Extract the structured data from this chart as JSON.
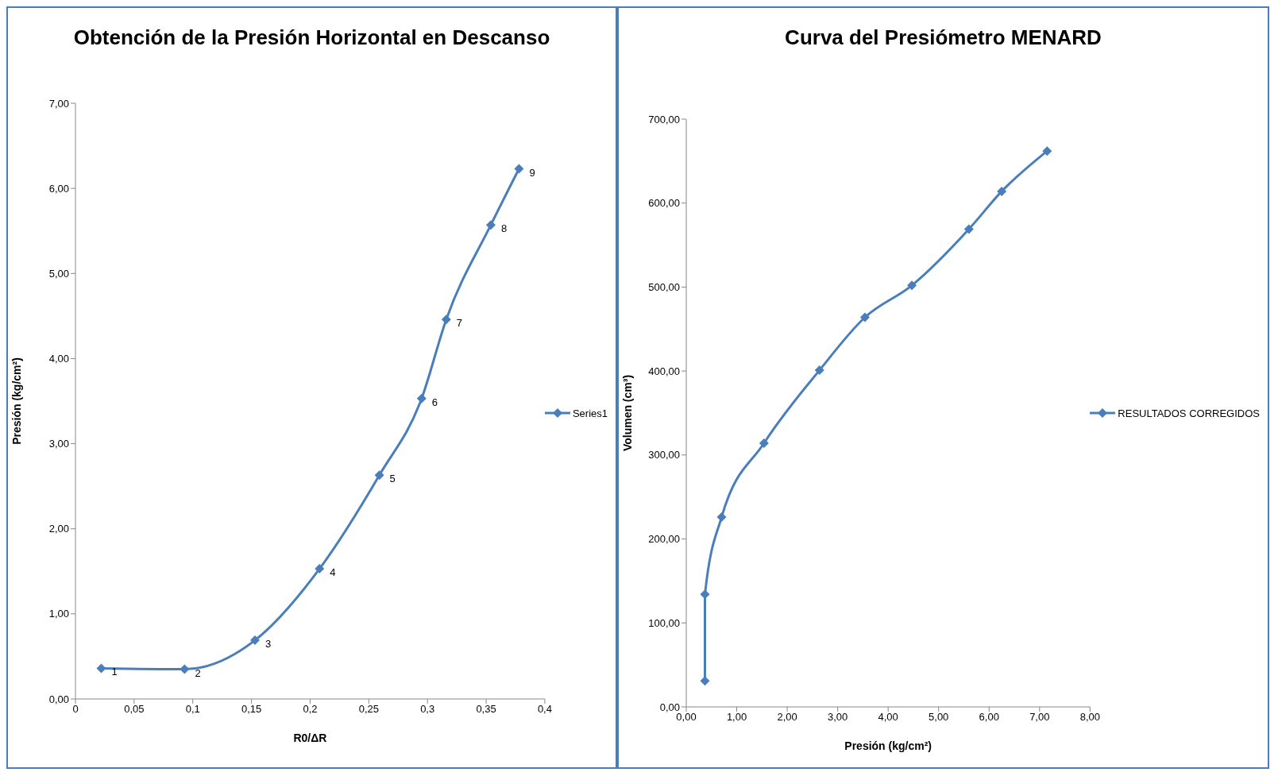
{
  "chart_data": [
    {
      "type": "line",
      "title": "Obtención de la Presión Horizontal en Descanso",
      "xlabel": "R0/ΔR",
      "ylabel": "Presión (kg/cm²)",
      "x": [
        0.022,
        0.093,
        0.153,
        0.208,
        0.259,
        0.295,
        0.316,
        0.354,
        0.378
      ],
      "series": [
        {
          "name": "Series1",
          "color": "#4a7ebb",
          "values": [
            0.36,
            0.35,
            0.69,
            1.53,
            2.63,
            3.53,
            4.46,
            5.57,
            6.23
          ]
        }
      ],
      "annotations": [
        {
          "text": "1",
          "x": 0.022,
          "y": 0.36
        },
        {
          "text": "2",
          "x": 0.093,
          "y": 0.35
        },
        {
          "text": "3",
          "x": 0.153,
          "y": 0.69
        },
        {
          "text": "4",
          "x": 0.208,
          "y": 1.53
        },
        {
          "text": "5",
          "x": 0.259,
          "y": 2.63
        },
        {
          "text": "6",
          "x": 0.295,
          "y": 3.53
        },
        {
          "text": "7",
          "x": 0.316,
          "y": 4.46
        },
        {
          "text": "8",
          "x": 0.354,
          "y": 5.57
        },
        {
          "text": "9",
          "x": 0.378,
          "y": 6.23
        }
      ],
      "xlim": [
        0,
        0.4
      ],
      "xticks": [
        0,
        {
          "value": 0.05,
          "label": "0,05"
        },
        {
          "value": 0.1,
          "label": "0,1"
        },
        {
          "value": 0.15,
          "label": "0,15"
        },
        {
          "value": 0.2,
          "label": "0,2"
        },
        {
          "value": 0.25,
          "label": "0,25"
        },
        {
          "value": 0.3,
          "label": "0,3"
        },
        {
          "value": 0.35,
          "label": "0,35"
        },
        {
          "value": 0.4,
          "label": "0,4"
        }
      ],
      "ylim": [
        0,
        7
      ],
      "yticks": [
        {
          "value": 0,
          "label": "0,00"
        },
        {
          "value": 1,
          "label": "1,00"
        },
        {
          "value": 2,
          "label": "2,00"
        },
        {
          "value": 3,
          "label": "3,00"
        },
        {
          "value": 4,
          "label": "4,00"
        },
        {
          "value": 5,
          "label": "5,00"
        },
        {
          "value": 6,
          "label": "6,00"
        },
        {
          "value": 7,
          "label": "7,00"
        }
      ],
      "grid": false,
      "legend": "right",
      "marker": "diamond",
      "line_style": "solid"
    },
    {
      "type": "line",
      "title": "Curva del Presiómetro MENARD",
      "xlabel": "Presión (kg/cm²)",
      "ylabel": "Volumen (cm³)",
      "x": [
        0.37,
        0.37,
        0.7,
        1.54,
        2.64,
        3.54,
        4.47,
        5.6,
        6.25,
        7.15
      ],
      "series": [
        {
          "name": "RESULTADOS CORREGIDOS",
          "color": "#4a7ebb",
          "values": [
            31,
            134,
            226,
            314,
            401,
            464,
            502,
            569,
            614,
            662
          ]
        }
      ],
      "xlim": [
        0,
        8
      ],
      "xticks": [
        {
          "value": 0,
          "label": "0,00"
        },
        {
          "value": 1,
          "label": "1,00"
        },
        {
          "value": 2,
          "label": "2,00"
        },
        {
          "value": 3,
          "label": "3,00"
        },
        {
          "value": 4,
          "label": "4,00"
        },
        {
          "value": 5,
          "label": "5,00"
        },
        {
          "value": 6,
          "label": "6,00"
        },
        {
          "value": 7,
          "label": "7,00"
        },
        {
          "value": 8,
          "label": "8,00"
        }
      ],
      "ylim": [
        0,
        700
      ],
      "yticks": [
        {
          "value": 0,
          "label": "0,00"
        },
        {
          "value": 100,
          "label": "100,00"
        },
        {
          "value": 200,
          "label": "200,00"
        },
        {
          "value": 300,
          "label": "300,00"
        },
        {
          "value": 400,
          "label": "400,00"
        },
        {
          "value": 500,
          "label": "500,00"
        },
        {
          "value": 600,
          "label": "600,00"
        },
        {
          "value": 700,
          "label": "700,00"
        }
      ],
      "grid": false,
      "legend": "right",
      "marker": "diamond",
      "line_style": "solid"
    }
  ]
}
